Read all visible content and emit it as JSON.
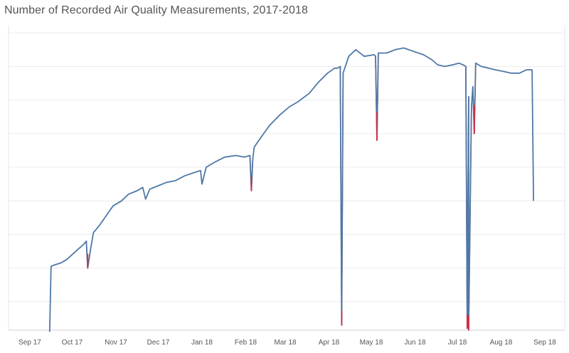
{
  "title": "Number of Recorded Air Quality Measurements, 2017-2018",
  "colors": {
    "line": "#4e79a7",
    "highlight": "#d62a3e",
    "grid": "#ececec",
    "text": "#555555"
  },
  "chart_data": {
    "type": "line",
    "title": "Number of Recorded Air Quality Measurements, 2017-2018",
    "xlabel": "",
    "ylabel": "",
    "x_ticks": [
      "Sep 17",
      "Oct 17",
      "Nov 17",
      "Dec 17",
      "Jan 18",
      "Feb 18",
      "Mar 18",
      "Apr 18",
      "May 18",
      "Jun 18",
      "Jul 18",
      "Aug 18",
      "Sep 18"
    ],
    "ylim": [
      0,
      9.3
    ],
    "grid": "horizontal",
    "y_gridlines": [
      1,
      2,
      3,
      4,
      5,
      6,
      7,
      8,
      9
    ],
    "value_unit_note": "y values in gridline units (no y-axis labels shown)",
    "series": [
      {
        "points": [
          [
            "2017-09-15",
            0.1
          ],
          [
            "2017-09-16",
            2.05
          ],
          [
            "2017-09-19",
            2.1
          ],
          [
            "2017-09-23",
            2.15
          ],
          [
            "2017-09-27",
            2.25
          ],
          [
            "2017-10-01",
            2.4
          ],
          [
            "2017-10-05",
            2.55
          ],
          [
            "2017-10-09",
            2.7
          ],
          [
            "2017-10-11",
            2.8
          ],
          [
            "2017-10-14",
            2.55
          ],
          [
            "2017-10-16",
            3.05
          ],
          [
            "2017-10-20",
            3.25
          ],
          [
            "2017-10-25",
            3.55
          ],
          [
            "2017-10-30",
            3.85
          ],
          [
            "2017-11-05",
            4.0
          ],
          [
            "2017-11-10",
            4.2
          ],
          [
            "2017-11-16",
            4.3
          ],
          [
            "2017-11-20",
            4.4
          ],
          [
            "2017-11-22",
            4.05
          ],
          [
            "2017-11-25",
            4.35
          ],
          [
            "2017-12-01",
            4.45
          ],
          [
            "2017-12-07",
            4.55
          ],
          [
            "2017-12-13",
            4.6
          ],
          [
            "2017-12-20",
            4.75
          ],
          [
            "2017-12-27",
            4.85
          ],
          [
            "2017-12-31",
            4.9
          ],
          [
            "2018-01-01",
            4.5
          ],
          [
            "2018-01-04",
            5.0
          ],
          [
            "2018-01-10",
            5.15
          ],
          [
            "2018-01-17",
            5.3
          ],
          [
            "2018-01-25",
            5.35
          ],
          [
            "2018-01-31",
            5.3
          ],
          [
            "2018-02-04",
            5.35
          ],
          [
            "2018-02-06",
            5.25
          ],
          [
            "2018-02-07",
            5.6
          ],
          [
            "2018-02-12",
            5.9
          ],
          [
            "2018-02-18",
            6.25
          ],
          [
            "2018-02-25",
            6.55
          ],
          [
            "2018-03-04",
            6.8
          ],
          [
            "2018-03-10",
            6.95
          ],
          [
            "2018-03-18",
            7.2
          ],
          [
            "2018-03-25",
            7.55
          ],
          [
            "2018-03-31",
            7.8
          ],
          [
            "2018-04-05",
            7.95
          ],
          [
            "2018-04-07",
            7.95
          ],
          [
            "2018-04-09",
            8.0
          ],
          [
            "2018-04-11",
            7.8
          ],
          [
            "2018-04-15",
            8.3
          ],
          [
            "2018-04-20",
            8.5
          ],
          [
            "2018-04-26",
            8.3
          ],
          [
            "2018-05-03",
            8.35
          ],
          [
            "2018-05-04",
            8.3
          ],
          [
            "2018-05-06",
            8.4
          ],
          [
            "2018-05-12",
            8.4
          ],
          [
            "2018-05-18",
            8.5
          ],
          [
            "2018-05-24",
            8.55
          ],
          [
            "2018-05-31",
            8.45
          ],
          [
            "2018-06-07",
            8.35
          ],
          [
            "2018-06-13",
            8.2
          ],
          [
            "2018-06-17",
            8.05
          ],
          [
            "2018-06-22",
            8.0
          ],
          [
            "2018-06-28",
            8.05
          ],
          [
            "2018-07-02",
            8.1
          ],
          [
            "2018-07-05",
            8.05
          ],
          [
            "2018-07-07",
            8.0
          ],
          [
            "2018-07-09",
            7.1
          ],
          [
            "2018-07-11",
            6.8
          ],
          [
            "2018-07-12",
            7.4
          ],
          [
            "2018-07-14",
            8.1
          ],
          [
            "2018-07-18",
            8.0
          ],
          [
            "2018-07-23",
            7.95
          ],
          [
            "2018-07-28",
            7.9
          ],
          [
            "2018-08-03",
            7.85
          ],
          [
            "2018-08-08",
            7.8
          ],
          [
            "2018-08-14",
            7.8
          ],
          [
            "2018-08-19",
            7.9
          ],
          [
            "2018-08-23",
            7.9
          ],
          [
            "2018-08-24",
            4.0
          ]
        ],
        "dips": [
          [
            "2017-10-12",
            2.0
          ],
          [
            "2018-02-05",
            4.3
          ],
          [
            "2018-04-10",
            0.3
          ],
          [
            "2018-05-05",
            5.8
          ],
          [
            "2018-07-08",
            0.2
          ],
          [
            "2018-07-09",
            0.15
          ],
          [
            "2018-07-13",
            6.0
          ]
        ]
      }
    ]
  }
}
